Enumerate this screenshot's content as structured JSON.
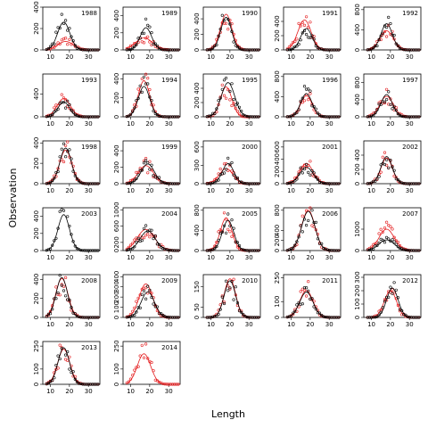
{
  "chart_data": {
    "type": "scatter",
    "title": "",
    "xlabel": "Length",
    "ylabel": "Observation",
    "xlim": [
      6,
      36
    ],
    "x_ticks": [
      10,
      20,
      30
    ],
    "grid": false,
    "legend": "none",
    "series_styles": {
      "fitted_black": {
        "color": "#000000",
        "marker": "line+open-circle"
      },
      "fitted_red": {
        "color": "#e41a1c",
        "marker": "line+open-circle"
      }
    },
    "panels": [
      {
        "label": "1988",
        "ylim": [
          0,
          400
        ],
        "yticks": [
          0,
          200,
          400
        ],
        "black": {
          "peak": 260,
          "mu": 17,
          "sd": 3.2
        },
        "red": {
          "peak": 80,
          "mu": 18,
          "sd": 4.0
        }
      },
      {
        "label": "1989",
        "ylim": [
          0,
          500
        ],
        "yticks": [
          0,
          200,
          400
        ],
        "black": {
          "peak": 260,
          "mu": 18,
          "sd": 3.0
        },
        "red": {
          "peak": 140,
          "mu": 17,
          "sd": 4.5
        }
      },
      {
        "label": "1990",
        "ylim": [
          0,
          550
        ],
        "yticks": [
          0,
          200,
          400
        ],
        "black": {
          "peak": 420,
          "mu": 18,
          "sd": 2.8
        },
        "red": {
          "peak": 460,
          "mu": 18,
          "sd": 3.0
        }
      },
      {
        "label": "1991",
        "ylim": [
          0,
          600
        ],
        "yticks": [
          0,
          200,
          400
        ],
        "black": {
          "peak": 300,
          "mu": 18,
          "sd": 3.0
        },
        "red": {
          "peak": 420,
          "mu": 17,
          "sd": 3.5
        }
      },
      {
        "label": "1992",
        "ylim": [
          0,
          850
        ],
        "yticks": [
          0,
          400,
          800
        ],
        "black": {
          "peak": 520,
          "mu": 18,
          "sd": 3.0
        },
        "red": {
          "peak": 380,
          "mu": 18,
          "sd": 3.5
        }
      },
      {
        "label": "1993",
        "ylim": [
          0,
          750
        ],
        "yticks": [
          0,
          400
        ],
        "black": {
          "peak": 260,
          "mu": 17,
          "sd": 3.0
        },
        "red": {
          "peak": 320,
          "mu": 17,
          "sd": 3.5
        }
      },
      {
        "label": "1994",
        "ylim": [
          0,
          450
        ],
        "yticks": [
          0,
          200,
          400
        ],
        "black": {
          "peak": 320,
          "mu": 17,
          "sd": 3.0
        },
        "red": {
          "peak": 380,
          "mu": 17,
          "sd": 3.0
        }
      },
      {
        "label": "1995",
        "ylim": [
          0,
          600
        ],
        "yticks": [
          0,
          200,
          400
        ],
        "black": {
          "peak": 480,
          "mu": 19,
          "sd": 3.5
        },
        "red": {
          "peak": 420,
          "mu": 18,
          "sd": 3.0
        }
      },
      {
        "label": "1996",
        "ylim": [
          0,
          850
        ],
        "yticks": [
          0,
          400,
          800
        ],
        "black": {
          "peak": 460,
          "mu": 18,
          "sd": 3.0
        },
        "red": {
          "peak": 420,
          "mu": 18,
          "sd": 3.0
        }
      },
      {
        "label": "1997",
        "ylim": [
          0,
          1000
        ],
        "yticks": [
          0,
          400,
          800
        ],
        "black": {
          "peak": 520,
          "mu": 18,
          "sd": 3.0
        },
        "red": {
          "peak": 480,
          "mu": 18,
          "sd": 3.5
        }
      },
      {
        "label": "1998",
        "ylim": [
          0,
          420
        ],
        "yticks": [
          0,
          200,
          400
        ],
        "black": {
          "peak": 350,
          "mu": 18,
          "sd": 3.0
        },
        "red": {
          "peak": 330,
          "mu": 18,
          "sd": 3.2
        }
      },
      {
        "label": "1999",
        "ylim": [
          0,
          520
        ],
        "yticks": [
          0,
          200,
          400
        ],
        "black": {
          "peak": 240,
          "mu": 19,
          "sd": 3.5
        },
        "red": {
          "peak": 220,
          "mu": 18,
          "sd": 4.0
        }
      },
      {
        "label": "2000",
        "ylim": [
          0,
          700
        ],
        "yticks": [
          0,
          300,
          600
        ],
        "black": {
          "peak": 330,
          "mu": 19,
          "sd": 3.0
        },
        "red": {
          "peak": 250,
          "mu": 18,
          "sd": 3.5
        }
      },
      {
        "label": "2001",
        "ylim": [
          0,
          700
        ],
        "yticks": [
          0,
          200,
          400,
          600
        ],
        "black": {
          "peak": 270,
          "mu": 18,
          "sd": 3.5
        },
        "red": {
          "peak": 330,
          "mu": 18,
          "sd": 3.5
        }
      },
      {
        "label": "2002",
        "ylim": [
          0,
          600
        ],
        "yticks": [
          0,
          200,
          400
        ],
        "black": {
          "peak": 380,
          "mu": 18,
          "sd": 3.0
        },
        "red": {
          "peak": 360,
          "mu": 18,
          "sd": 3.0
        }
      },
      {
        "label": "2003",
        "ylim": [
          0,
          500
        ],
        "yticks": [
          0,
          200,
          400
        ],
        "black": {
          "peak": 420,
          "mu": 17,
          "sd": 3.0
        },
        "red": {
          "peak": 0,
          "mu": 17,
          "sd": 3.0
        }
      },
      {
        "label": "2004",
        "ylim": [
          0,
          1050
        ],
        "yticks": [
          0,
          200,
          600,
          1000
        ],
        "black": {
          "peak": 480,
          "mu": 19,
          "sd": 4.0
        },
        "red": {
          "peak": 520,
          "mu": 18,
          "sd": 4.5
        }
      },
      {
        "label": "2005",
        "ylim": [
          0,
          850
        ],
        "yticks": [
          0,
          400,
          800
        ],
        "black": {
          "peak": 600,
          "mu": 19,
          "sd": 3.0
        },
        "red": {
          "peak": 650,
          "mu": 18,
          "sd": 3.0
        }
      },
      {
        "label": "2006",
        "ylim": [
          0,
          850
        ],
        "yticks": [
          0,
          200,
          400,
          800
        ],
        "black": {
          "peak": 780,
          "mu": 19,
          "sd": 3.5
        },
        "red": {
          "peak": 800,
          "mu": 19,
          "sd": 3.5
        }
      },
      {
        "label": "2007",
        "ylim": [
          0,
          2000
        ],
        "yticks": [
          0,
          1000
        ],
        "black": {
          "peak": 500,
          "mu": 18,
          "sd": 4.0
        },
        "red": {
          "peak": 1000,
          "mu": 18,
          "sd": 4.0
        }
      },
      {
        "label": "2008",
        "ylim": [
          0,
          450
        ],
        "yticks": [
          0,
          200,
          400
        ],
        "black": {
          "peak": 420,
          "mu": 16,
          "sd": 3.0
        },
        "red": {
          "peak": 410,
          "mu": 16,
          "sd": 3.2
        }
      },
      {
        "label": "2009",
        "ylim": [
          0,
          420
        ],
        "yticks": [
          0,
          100,
          200,
          300,
          400
        ],
        "black": {
          "peak": 250,
          "mu": 19,
          "sd": 3.5
        },
        "red": {
          "peak": 330,
          "mu": 18,
          "sd": 3.5
        }
      },
      {
        "label": "2010",
        "ylim": [
          0,
          210
        ],
        "yticks": [
          0,
          50,
          150
        ],
        "black": {
          "peak": 180,
          "mu": 20,
          "sd": 3.0
        },
        "red": {
          "peak": 190,
          "mu": 20,
          "sd": 3.0
        }
      },
      {
        "label": "2011",
        "ylim": [
          0,
          270
        ],
        "yticks": [
          0,
          100,
          250
        ],
        "black": {
          "peak": 160,
          "mu": 18,
          "sd": 3.5
        },
        "red": {
          "peak": 170,
          "mu": 18,
          "sd": 3.5
        }
      },
      {
        "label": "2012",
        "ylim": [
          0,
          320
        ],
        "yticks": [
          0,
          100,
          200,
          300
        ],
        "black": {
          "peak": 220,
          "mu": 21,
          "sd": 3.0
        },
        "red": {
          "peak": 200,
          "mu": 20,
          "sd": 3.2
        }
      },
      {
        "label": "2013",
        "ylim": [
          0,
          280
        ],
        "yticks": [
          0,
          100,
          250
        ],
        "black": {
          "peak": 240,
          "mu": 17,
          "sd": 3.0
        },
        "red": {
          "peak": 230,
          "mu": 17,
          "sd": 3.2
        }
      },
      {
        "label": "2014",
        "ylim": [
          0,
          280
        ],
        "yticks": [
          0,
          100,
          250
        ],
        "black": {
          "peak": 0,
          "mu": 17,
          "sd": 3.0
        },
        "red": {
          "peak": 200,
          "mu": 17,
          "sd": 3.5
        }
      }
    ]
  }
}
